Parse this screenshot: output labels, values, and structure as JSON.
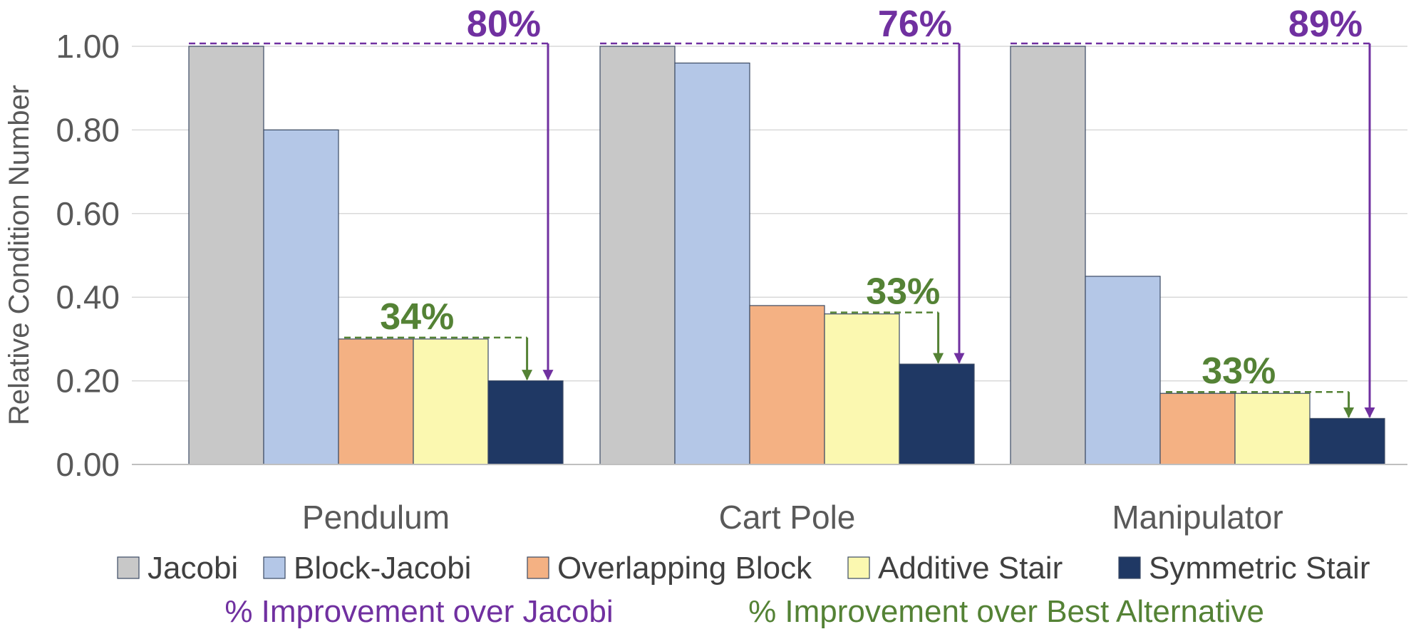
{
  "chart_data": {
    "type": "bar",
    "title": "",
    "xlabel": "",
    "ylabel": "Relative Condition Number",
    "ylim": [
      0,
      1
    ],
    "yticks": [
      "0.00",
      "0.20",
      "0.40",
      "0.60",
      "0.80",
      "1.00"
    ],
    "ytick_values": [
      0,
      0.2,
      0.4,
      0.6,
      0.8,
      1.0
    ],
    "grid": true,
    "categories": [
      "Pendulum",
      "Cart Pole",
      "Manipulator"
    ],
    "series": [
      {
        "name": "Jacobi",
        "color": "#c8c8c8",
        "values": [
          1.0,
          1.0,
          1.0
        ]
      },
      {
        "name": "Block-Jacobi",
        "color": "#b4c7e7",
        "values": [
          0.8,
          0.96,
          0.45
        ]
      },
      {
        "name": "Overlapping Block",
        "color": "#f4b183",
        "values": [
          0.3,
          0.38,
          0.17
        ]
      },
      {
        "name": "Additive Stair",
        "color": "#fbf8b0",
        "values": [
          0.3,
          0.36,
          0.17
        ]
      },
      {
        "name": "Symmetric Stair",
        "color": "#1f3864",
        "values": [
          0.2,
          0.24,
          0.11
        ]
      }
    ],
    "improvement_over_jacobi": [
      "80%",
      "76%",
      "89%"
    ],
    "improvement_over_best_alternative": [
      "34%",
      "33%",
      "33%"
    ],
    "legend_placement": "bottom",
    "annotation_colors": {
      "jacobi": "#7030a0",
      "best": "#548235"
    },
    "notes": {
      "jacobi": "% Improvement over Jacobi",
      "best": "% Improvement over Best Alternative"
    }
  }
}
